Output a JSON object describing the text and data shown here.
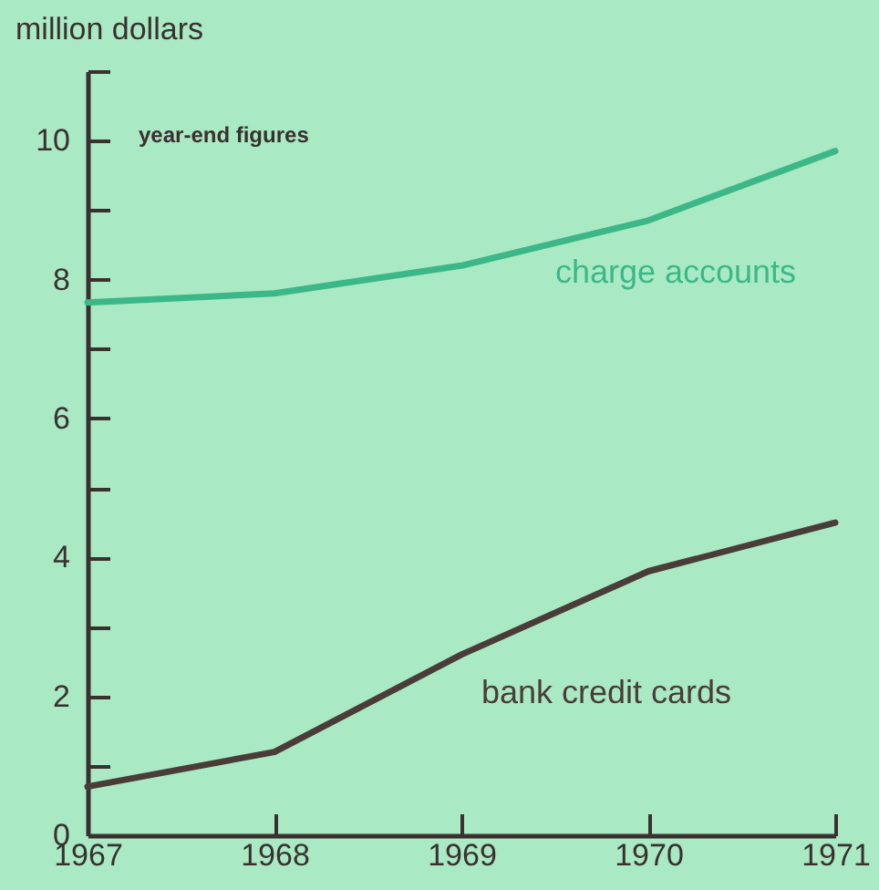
{
  "chart_data": {
    "type": "line",
    "ylabel": "million dollars",
    "annotations": [
      "year-end figures"
    ],
    "x": [
      1967,
      1968,
      1969,
      1970,
      1971
    ],
    "series": [
      {
        "name": "charge accounts",
        "color": "#3cb888",
        "values": [
          7.67,
          7.8,
          8.2,
          8.85,
          9.85
        ]
      },
      {
        "name": "bank credit cards",
        "color": "#4a3c38",
        "values": [
          0.7,
          1.2,
          2.6,
          3.8,
          4.5
        ]
      }
    ],
    "xlim": [
      1967,
      1971
    ],
    "xticks": [
      1967,
      1968,
      1969,
      1970,
      1971
    ],
    "ylim": [
      0,
      11
    ],
    "yticks": [
      0,
      {
        "value": 1,
        "label": null
      },
      2,
      {
        "value": 3,
        "label": null
      },
      4,
      {
        "value": 5,
        "label": null
      },
      6,
      {
        "value": 7,
        "label": null
      },
      8,
      {
        "value": 9,
        "label": null
      },
      10,
      {
        "value": 11,
        "label": null
      }
    ],
    "grid": false,
    "marker": "none",
    "line_style": "solid"
  }
}
